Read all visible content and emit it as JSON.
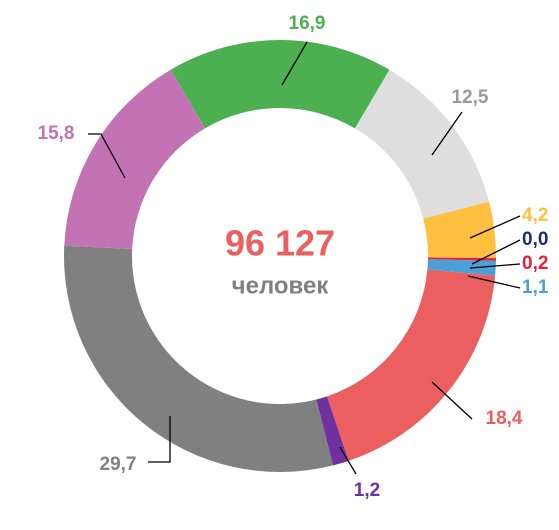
{
  "chart_data": {
    "type": "donut",
    "center_title": "96 127",
    "center_subtitle": "человек",
    "values": [
      16.9,
      12.5,
      4.2,
      0.0,
      0.2,
      1.1,
      18.4,
      1.2,
      29.7,
      15.8
    ],
    "value_labels": [
      "16,9",
      "12,5",
      "4,2",
      "0,0",
      "0,2",
      "1,1",
      "18,4",
      "1,2",
      "29,7",
      "15,8"
    ],
    "colors": [
      "#4caf50",
      "#dedede",
      "#ffc040",
      "#1f2a78",
      "#e8203a",
      "#4d9fd8",
      "#ec5f60",
      "#7030a0",
      "#808080",
      "#c373b3"
    ],
    "label_colors": [
      "#4caf50",
      "#9a9a9a",
      "#ffc040",
      "#1f2a78",
      "#e8203a",
      "#4d9fd8",
      "#ec5f60",
      "#7030a0",
      "#808080",
      "#c373b3"
    ]
  }
}
